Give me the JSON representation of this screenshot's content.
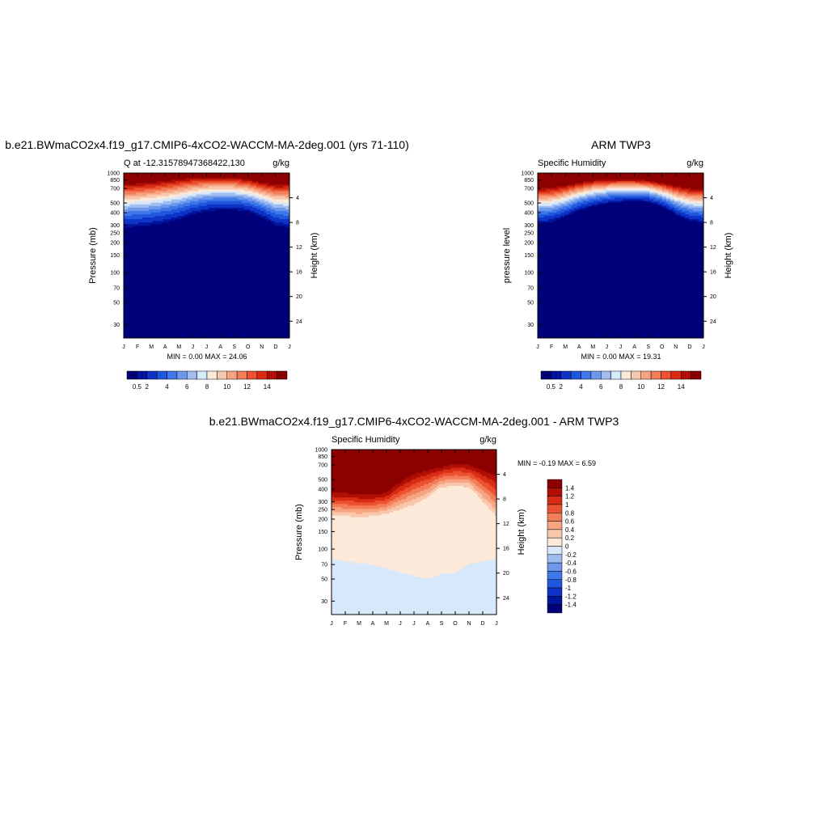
{
  "chart_data": [
    {
      "type": "heatmap",
      "title": "b.e21.BWmaCO2x4.f19_g17.CMIP6-4xCO2-WACCM-MA-2deg.001 (yrs 71-110)",
      "left_subtitle": "Q at -12.31578947368422,130",
      "right_subtitle": "g/kg",
      "ylabel": "Pressure (mb)",
      "ylabel_right": "Height (km)",
      "x_ticks": [
        "J",
        "F",
        "M",
        "A",
        "M",
        "J",
        "J",
        "A",
        "S",
        "O",
        "N",
        "D",
        "J"
      ],
      "y_ticks": [
        30,
        50,
        70,
        100,
        150,
        200,
        250,
        300,
        400,
        500,
        700,
        850,
        1000
      ],
      "y_right_ticks": [
        24,
        20,
        16,
        12,
        8,
        4
      ],
      "ylim": [
        1000,
        22
      ],
      "y_scale": "log",
      "stats_text": "MIN =   0.00 MAX =  24.06",
      "colorbar": {
        "orientation": "horizontal",
        "levels": [
          0.5,
          1,
          2,
          3,
          4,
          5,
          6,
          7,
          8,
          9,
          10,
          11,
          12,
          13,
          14
        ],
        "labels": [
          "0.5",
          "2",
          "4",
          "6",
          "8",
          "10",
          "12",
          "14"
        ]
      },
      "surface_value": 16,
      "scale_height": 1.45,
      "front_top_pressure": [
        255,
        260,
        270,
        285,
        310,
        350,
        380,
        395,
        395,
        380,
        330,
        270,
        255
      ],
      "front_bottom_pressure": [
        850,
        870,
        890,
        920,
        950,
        975,
        985,
        985,
        970,
        930,
        870,
        840,
        850
      ]
    },
    {
      "type": "heatmap",
      "title": "ARM TWP3",
      "left_subtitle": "Specific Humidity",
      "right_subtitle": "g/kg",
      "ylabel": "pressure level",
      "ylabel_right": "Height (km)",
      "x_ticks": [
        "J",
        "F",
        "M",
        "A",
        "M",
        "J",
        "J",
        "A",
        "S",
        "O",
        "N",
        "D",
        "J"
      ],
      "y_ticks": [
        30,
        50,
        70,
        100,
        150,
        200,
        250,
        300,
        400,
        500,
        700,
        850,
        1000
      ],
      "y_right_ticks": [
        24,
        20,
        16,
        12,
        8,
        4
      ],
      "ylim": [
        1000,
        22
      ],
      "y_scale": "log",
      "stats_text": "MIN =   0.00 MAX =  19.31",
      "colorbar": {
        "orientation": "horizontal",
        "levels": [
          0.5,
          1,
          2,
          3,
          4,
          5,
          6,
          7,
          8,
          9,
          10,
          11,
          12,
          13,
          14
        ],
        "labels": [
          "0.5",
          "2",
          "4",
          "6",
          "8",
          "10",
          "12",
          "14"
        ]
      },
      "surface_value": 19,
      "scale_height": 1.35,
      "front_top_pressure": [
        295,
        300,
        340,
        400,
        440,
        470,
        490,
        500,
        490,
        440,
        360,
        310,
        295
      ],
      "front_bottom_pressure": [
        860,
        880,
        910,
        950,
        985,
        998,
        1000,
        990,
        960,
        920,
        880,
        855,
        860
      ]
    },
    {
      "type": "heatmap",
      "title": "b.e21.BWmaCO2x4.f19_g17.CMIP6-4xCO2-WACCM-MA-2deg.001 - ARM TWP3",
      "left_subtitle": "Specific Humidity",
      "right_subtitle": "g/kg",
      "ylabel": "Pressure (mb)",
      "ylabel_right": "Height (km)",
      "x_ticks": [
        "J",
        "F",
        "M",
        "A",
        "M",
        "J",
        "J",
        "A",
        "S",
        "O",
        "N",
        "D",
        "J"
      ],
      "y_ticks": [
        30,
        50,
        70,
        100,
        150,
        200,
        250,
        300,
        400,
        500,
        700,
        850,
        1000
      ],
      "y_right_ticks": [
        24,
        20,
        16,
        12,
        8,
        4
      ],
      "ylim": [
        1000,
        22
      ],
      "y_scale": "log",
      "stats_text": "MIN =  -0.19 MAX =   6.59",
      "colorbar": {
        "orientation": "vertical",
        "levels": [
          -1.4,
          -1.2,
          -1,
          -0.8,
          -0.6,
          -0.4,
          -0.2,
          0,
          0.2,
          0.4,
          0.6,
          0.8,
          1,
          1.2,
          1.4
        ],
        "labels": [
          "1.4",
          "1.2",
          "1",
          "0.8",
          "0.6",
          "0.4",
          "0.2",
          "0",
          "-0.2",
          "-0.4",
          "-0.6",
          "-0.8",
          "-1",
          "-1.2",
          "-1.4"
        ]
      },
      "zero_line_pressure": [
        78,
        76,
        72,
        70,
        64,
        58,
        54,
        50,
        56,
        58,
        70,
        76,
        78
      ],
      "moist_top_pressure": [
        220,
        215,
        210,
        215,
        225,
        250,
        280,
        330,
        420,
        430,
        420,
        300,
        210
      ],
      "strong_top_pressure": [
        400,
        400,
        385,
        380,
        400,
        520,
        640,
        690,
        720,
        780,
        760,
        700,
        640
      ]
    }
  ],
  "colors": {
    "axis": "#000000",
    "blue_red_scale": [
      "#00007a",
      "#00159e",
      "#0e33c6",
      "#2058dd",
      "#3f78e8",
      "#6e98ec",
      "#a0bdf1",
      "#d7e8fb",
      "#fde9d9",
      "#f9c7ac",
      "#f6a482",
      "#f27e5a",
      "#ec5130",
      "#d82d14",
      "#b10f05",
      "#8c0000"
    ]
  }
}
